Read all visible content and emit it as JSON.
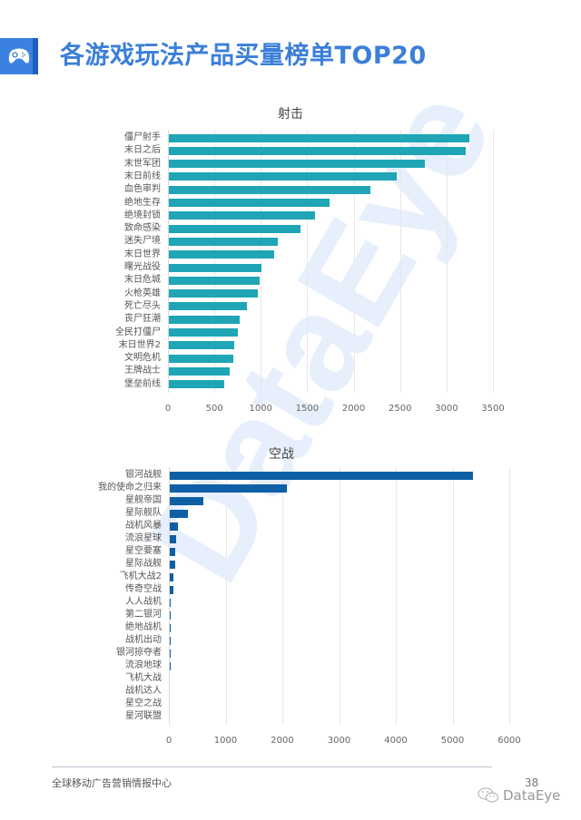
{
  "header": {
    "title": "各游戏玩法产品买量榜单TOP20",
    "icon": "gamepad-icon",
    "accent_color": "#3b82e0"
  },
  "watermark": "DataEye",
  "footer": {
    "org_text": "全球移动广告营销情报中心",
    "page_number": "38",
    "brand": "DataEye",
    "brand_icon": "wechat-icon"
  },
  "chart_data": [
    {
      "type": "bar",
      "orientation": "horizontal",
      "title": "射击",
      "color": "#1fa5b5",
      "categories": [
        "僵尸射手",
        "末日之后",
        "末世军团",
        "末日前线",
        "血色审判",
        "绝地生存",
        "绝境封锁",
        "致命感染",
        "迷失尸境",
        "末日世界",
        "曙光战役",
        "末日危城",
        "火枪英雄",
        "死亡尽头",
        "丧尸狂潮",
        "全民打僵尸",
        "末日世界2",
        "文明危机",
        "王牌战士",
        "堡垒前线"
      ],
      "values": [
        3245,
        3205,
        2765,
        2465,
        2180,
        1740,
        1585,
        1430,
        1185,
        1145,
        1005,
        985,
        970,
        850,
        775,
        750,
        715,
        705,
        665,
        605
      ],
      "xlabel": "",
      "ylabel": "",
      "xlim": [
        0,
        3500
      ],
      "xticks": [
        "0",
        "500",
        "1000",
        "1500",
        "2000",
        "2500",
        "3000",
        "3500"
      ],
      "grid": true,
      "legend": null
    },
    {
      "type": "bar",
      "orientation": "horizontal",
      "title": "空战",
      "color": "#0f5fa6",
      "categories": [
        "银河战舰",
        "我的使命之归来",
        "星舰帝国",
        "星际舰队",
        "战机风暴",
        "流浪星球",
        "星空要塞",
        "星际战舰",
        "飞机大战2",
        "传奇空战",
        "人人战机",
        "第二银河",
        "绝地战机",
        "战机出动",
        "银河掠夺者",
        "流浪地球",
        "飞机大战",
        "战机达人",
        "星空之战",
        "星河联盟"
      ],
      "values": [
        5360,
        2080,
        610,
        335,
        160,
        130,
        115,
        110,
        85,
        80,
        35,
        33,
        28,
        26,
        25,
        24,
        20,
        15,
        8,
        3
      ],
      "xlabel": "",
      "ylabel": "",
      "xlim": [
        0,
        6000
      ],
      "xticks": [
        "0",
        "1000",
        "2000",
        "3000",
        "4000",
        "5000",
        "6000"
      ],
      "grid": true,
      "legend": null
    }
  ]
}
